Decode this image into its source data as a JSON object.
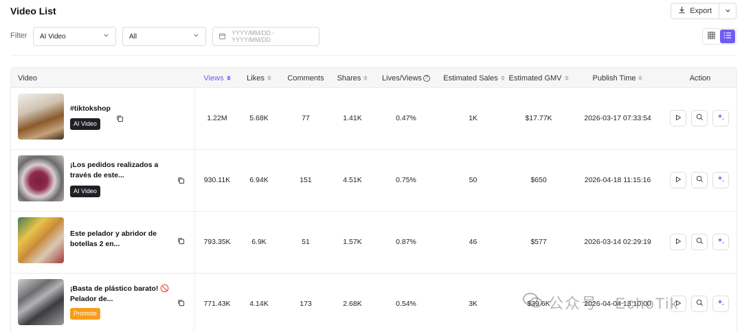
{
  "page": {
    "title": "Video List"
  },
  "toolbar": {
    "export_label": "Export"
  },
  "filters": {
    "label": "Filter",
    "type_value": "AI Video",
    "second_value": "All",
    "date_placeholder": "YYYY/MM/DD - YYYY/MM/DD"
  },
  "table": {
    "columns": [
      "Video",
      "Views",
      "Likes",
      "Comments",
      "Shares",
      "Lives/Views",
      "Estimated Sales",
      "Estimated GMV",
      "Publish Time",
      "Action"
    ],
    "rows": [
      {
        "title_1": "#tiktokshop",
        "title_2": "",
        "badge": "AI Video",
        "views": "1.22M",
        "likes": "5.68K",
        "comments": "77",
        "shares": "1.41K",
        "lives_views": "0.47%",
        "sales": "1K",
        "gmv": "$17.77K",
        "publish": "2026-03-17 07:33:54"
      },
      {
        "title_1": "¡Los pedidos realizados a",
        "title_2": "través de este...",
        "badge": "AI Video",
        "views": "930.11K",
        "likes": "6.94K",
        "comments": "151",
        "shares": "4.51K",
        "lives_views": "0.75%",
        "sales": "50",
        "gmv": "$650",
        "publish": "2026-04-18 11:15:16"
      },
      {
        "title_1": "Este pelador y abridor de",
        "title_2": "botellas 2 en...",
        "badge": "",
        "views": "793.35K",
        "likes": "6.9K",
        "comments": "51",
        "shares": "1.57K",
        "lives_views": "0.87%",
        "sales": "46",
        "gmv": "$577",
        "publish": "2026-03-14 02:29:19"
      },
      {
        "title_1": "¡Basta de plástico barato! 🚫",
        "title_2": "Pelador de...",
        "badge": "Promote",
        "views": "771.43K",
        "likes": "4.14K",
        "comments": "173",
        "shares": "2.68K",
        "lives_views": "0.54%",
        "sales": "3K",
        "gmv": "$39.6K",
        "publish": "2026-04-04 13:10:00"
      }
    ]
  },
  "watermark": {
    "text": "公众号 · EchoTik"
  },
  "colors": {
    "accent": "#6f5cf0",
    "badge_dark": "#1e2026",
    "badge_promote": "#f59e1b"
  }
}
